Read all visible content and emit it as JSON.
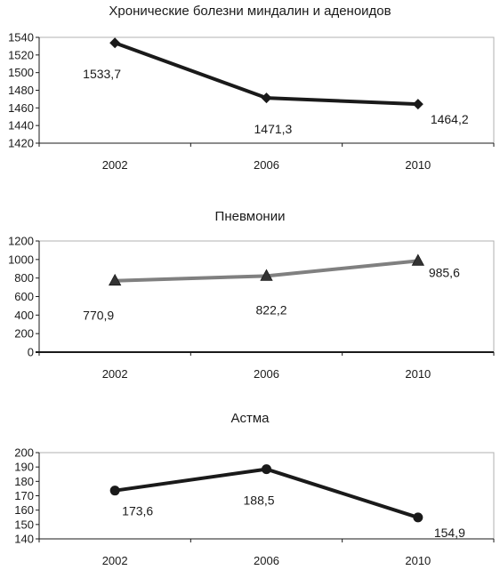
{
  "chart_data": [
    {
      "type": "line",
      "title": "Хронические болезни миндалин и аденоидов",
      "categories": [
        "2002",
        "2006",
        "2010"
      ],
      "series": [
        {
          "values": [
            1533.7,
            1471.3,
            1464.2
          ],
          "data_labels": [
            "1533,7",
            "1471,3",
            "1464,2"
          ],
          "color": "#1a1a1a",
          "marker": "diamond"
        }
      ],
      "ylim": [
        1420,
        1540
      ],
      "yticks": [
        1420,
        1440,
        1460,
        1480,
        1500,
        1520,
        1540
      ],
      "grid": false,
      "xlabel": "",
      "ylabel": ""
    },
    {
      "type": "line",
      "title": "Пневмонии",
      "categories": [
        "2002",
        "2006",
        "2010"
      ],
      "series": [
        {
          "values": [
            770.9,
            822.2,
            985.6
          ],
          "data_labels": [
            "770,9",
            "822,2",
            "985,6"
          ],
          "color": "#808080",
          "marker": "triangle"
        }
      ],
      "ylim": [
        0,
        1200
      ],
      "yticks": [
        0,
        200,
        400,
        600,
        800,
        1000,
        1200
      ],
      "grid": false,
      "xlabel": "",
      "ylabel": ""
    },
    {
      "type": "line",
      "title": "Астма",
      "categories": [
        "2002",
        "2006",
        "2010"
      ],
      "series": [
        {
          "values": [
            173.6,
            188.5,
            154.9
          ],
          "data_labels": [
            "173,6",
            "188,5",
            "154,9"
          ],
          "color": "#1a1a1a",
          "marker": "circle"
        }
      ],
      "ylim": [
        140,
        200
      ],
      "yticks": [
        140,
        150,
        160,
        170,
        180,
        190,
        200
      ],
      "grid": false,
      "xlabel": "",
      "ylabel": ""
    }
  ]
}
